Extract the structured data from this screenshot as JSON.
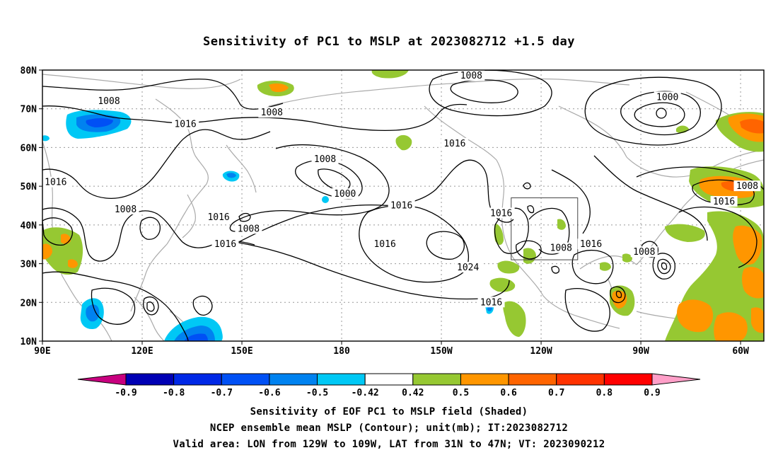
{
  "title": "Sensitivity of PC1 to MSLP at 2023082712 +1.5 day",
  "captions": [
    "Sensitivity of EOF PC1 to MSLP field (Shaded)",
    "NCEP ensemble mean MSLP (Contour); unit(mb); IT:2023082712",
    "Valid area: LON from 129W to 109W, LAT from 31N to 47N; VT: 2023090212"
  ],
  "map": {
    "lon_range": [
      90,
      307
    ],
    "lat_range": [
      10,
      80
    ],
    "lon_ticks": [
      {
        "lon": 90,
        "label": "90E"
      },
      {
        "lon": 120,
        "label": "120E"
      },
      {
        "lon": 150,
        "label": "150E"
      },
      {
        "lon": 180,
        "label": "180"
      },
      {
        "lon": 210,
        "label": "150W"
      },
      {
        "lon": 240,
        "label": "120W"
      },
      {
        "lon": 270,
        "label": "90W"
      },
      {
        "lon": 300,
        "label": "60W"
      }
    ],
    "lat_ticks": [
      {
        "lat": 10,
        "label": "10N"
      },
      {
        "lat": 20,
        "label": "20N"
      },
      {
        "lat": 30,
        "label": "30N"
      },
      {
        "lat": 40,
        "label": "40N"
      },
      {
        "lat": 50,
        "label": "50N"
      },
      {
        "lat": 60,
        "label": "60N"
      },
      {
        "lat": 70,
        "label": "70N"
      },
      {
        "lat": 80,
        "label": "80N"
      }
    ],
    "valid_box": {
      "lon_min": 231,
      "lon_max": 251,
      "lat_min": 31,
      "lat_max": 47
    },
    "contour_labels": [
      {
        "text": "1008",
        "lon": 110,
        "lat": 72
      },
      {
        "text": "1008",
        "lon": 159,
        "lat": 69
      },
      {
        "text": "1008",
        "lon": 219,
        "lat": 78.5
      },
      {
        "text": "1000",
        "lon": 278,
        "lat": 73
      },
      {
        "text": "1016",
        "lon": 133,
        "lat": 66
      },
      {
        "text": "1016",
        "lon": 214,
        "lat": 61
      },
      {
        "text": "1008",
        "lon": 175,
        "lat": 57
      },
      {
        "text": "1000",
        "lon": 181,
        "lat": 48
      },
      {
        "text": "1016",
        "lon": 94,
        "lat": 51
      },
      {
        "text": "1016",
        "lon": 198,
        "lat": 45
      },
      {
        "text": "1016",
        "lon": 228,
        "lat": 43
      },
      {
        "text": "1008",
        "lon": 115,
        "lat": 44
      },
      {
        "text": "1016",
        "lon": 143,
        "lat": 42
      },
      {
        "text": "1008",
        "lon": 152,
        "lat": 39
      },
      {
        "text": "1016",
        "lon": 145,
        "lat": 35
      },
      {
        "text": "1016",
        "lon": 193,
        "lat": 35
      },
      {
        "text": "1024",
        "lon": 218,
        "lat": 29
      },
      {
        "text": "1008",
        "lon": 246,
        "lat": 34
      },
      {
        "text": "1016",
        "lon": 255,
        "lat": 35
      },
      {
        "text": "1008",
        "lon": 271,
        "lat": 33
      },
      {
        "text": "1016",
        "lon": 225,
        "lat": 20
      },
      {
        "text": "1008",
        "lon": 302,
        "lat": 50
      },
      {
        "text": "1016",
        "lon": 295,
        "lat": 46
      }
    ]
  },
  "colorbar": {
    "labels": [
      "-0.9",
      "-0.8",
      "-0.7",
      "-0.6",
      "-0.5",
      "-0.42",
      "0.42",
      "0.5",
      "0.6",
      "0.7",
      "0.8",
      "0.9"
    ],
    "colors": [
      "#0000b4",
      "#0028e6",
      "#0050f5",
      "#0082f0",
      "#00c8f5",
      "#ffffff",
      "#96c832",
      "#ff9600",
      "#ff6400",
      "#ff3200",
      "#ff0000"
    ],
    "low_end_color": "#c8007f",
    "high_end_color": "#ff9fc8"
  }
}
